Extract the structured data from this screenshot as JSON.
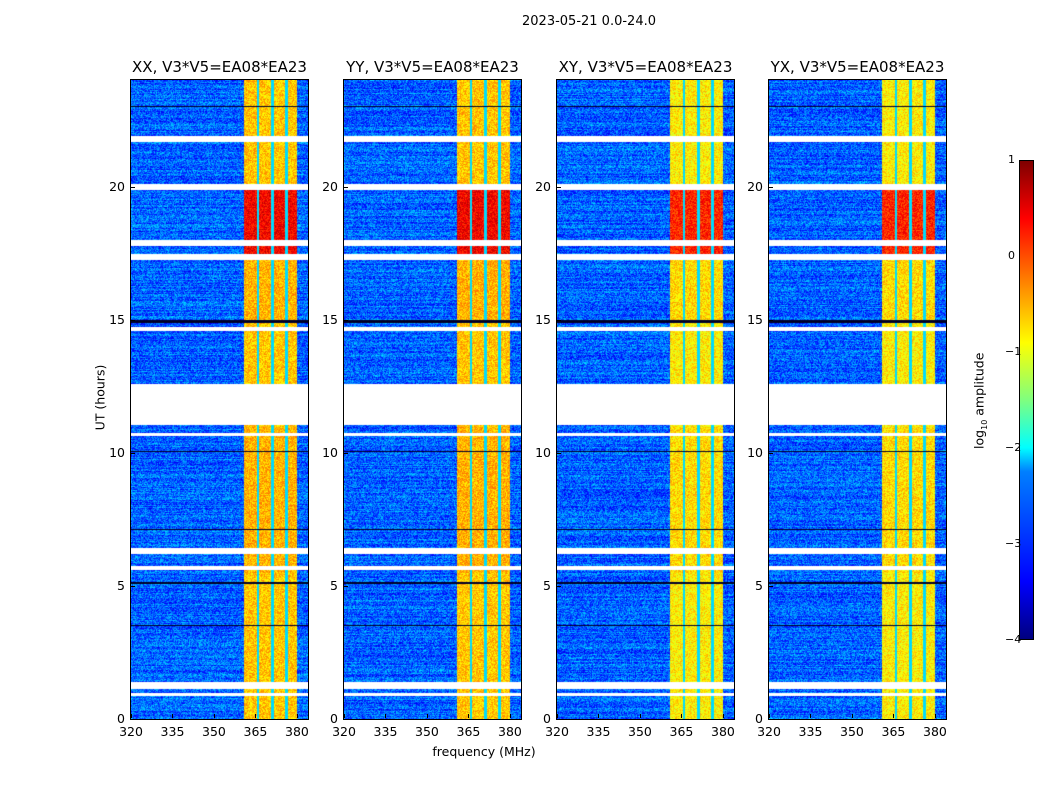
{
  "title": "2023-05-21 0.0-24.0",
  "chart_data": {
    "type": "heatmap",
    "panels": [
      {
        "title": "XX, V3*V5=EA08*EA23"
      },
      {
        "title": "YY, V3*V5=EA08*EA23"
      },
      {
        "title": "XY, V3*V5=EA08*EA23"
      },
      {
        "title": "YX, V3*V5=EA08*EA23"
      }
    ],
    "xlabel": "frequency (MHz)",
    "ylabel": "UT (hours)",
    "xlim": [
      320,
      384
    ],
    "ylim": [
      0,
      24
    ],
    "xticks": [
      "320",
      "335",
      "350",
      "365",
      "380"
    ],
    "yticks": [
      "0",
      "5",
      "10",
      "15",
      "20"
    ],
    "colorbar": {
      "label": "log10 amplitude",
      "label_main": "log",
      "label_sub": "10",
      "label_rest": " amplitude",
      "range": [
        -4,
        1
      ],
      "ticks": [
        "1",
        "0",
        "−1",
        "−2",
        "−3",
        "−4"
      ],
      "colormap": "jet"
    },
    "background_level": -2.9,
    "band": {
      "freq_range_mhz": [
        360.5,
        380
      ],
      "stripe_freqs_mhz": [
        365.7,
        371,
        376
      ]
    },
    "band_levels": [
      {
        "hours": [
          0,
          5.5
        ],
        "level": -0.6
      },
      {
        "hours": [
          5.5,
          11
        ],
        "level": -0.5
      },
      {
        "hours": [
          12.6,
          15
        ],
        "level": -0.6
      },
      {
        "hours": [
          15,
          17.5
        ],
        "level": -0.5
      },
      {
        "hours": [
          17.5,
          20
        ],
        "level": 0.4
      },
      {
        "hours": [
          20,
          24
        ],
        "level": -0.6
      }
    ],
    "flagged_hours": [
      [
        0.9,
        1.0
      ],
      [
        1.15,
        1.4
      ],
      [
        5.6,
        5.75
      ],
      [
        6.2,
        6.45
      ],
      [
        11.05,
        12.6
      ],
      [
        10.65,
        10.75
      ],
      [
        14.6,
        14.75
      ],
      [
        17.25,
        17.5
      ],
      [
        17.8,
        18.0
      ],
      [
        19.9,
        20.1
      ],
      [
        21.7,
        21.9
      ]
    ],
    "dropout_hours": [
      [
        14.9,
        15.0
      ],
      [
        5.1,
        5.15
      ],
      [
        23.0,
        23.05
      ],
      [
        3.5,
        3.55
      ],
      [
        7.1,
        7.15
      ],
      [
        10.05,
        10.1
      ]
    ]
  }
}
